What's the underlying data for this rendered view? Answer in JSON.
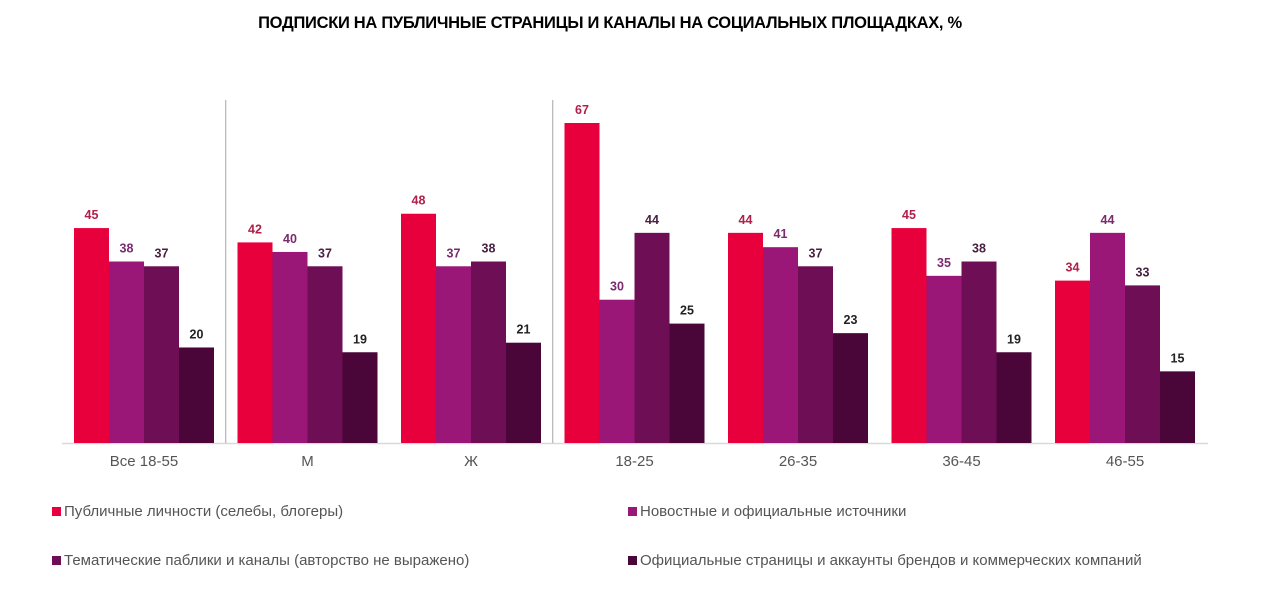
{
  "chart_data": {
    "type": "bar",
    "title": "ПОДПИСКИ НА ПУБЛИЧНЫЕ СТРАНИЦЫ И КАНАЛЫ  НА СОЦИАЛЬНЫХ ПЛОЩАДКАХ, %",
    "xlabel": "",
    "ylabel": "",
    "ylim": [
      0,
      70
    ],
    "grid": false,
    "legend_position": "bottom",
    "categories": [
      "Все 18-55",
      "М",
      "Ж",
      "18-25",
      "26-35",
      "36-45",
      "46-55"
    ],
    "group_separators_after": [
      "Все 18-55",
      "Ж"
    ],
    "series": [
      {
        "name": "Публичные личности (селебы, блогеры)",
        "color": "#E8003C",
        "label_color": "#B0204A",
        "values": [
          45,
          42,
          48,
          67,
          44,
          45,
          34
        ]
      },
      {
        "name": "Новостные и официальные источники",
        "color": "#9A1677",
        "label_color": "#7A2A6E",
        "values": [
          38,
          40,
          37,
          30,
          41,
          35,
          44
        ]
      },
      {
        "name": "Тематические паблики и каналы (авторство не выражено)",
        "color": "#6E0F55",
        "label_color": "#4A2040",
        "values": [
          37,
          37,
          38,
          44,
          37,
          38,
          33
        ]
      },
      {
        "name": "Официальные страницы и аккаунты брендов и коммерческих компаний",
        "color": "#4A0638",
        "label_color": "#222222",
        "values": [
          20,
          19,
          21,
          25,
          23,
          19,
          15
        ]
      }
    ]
  }
}
